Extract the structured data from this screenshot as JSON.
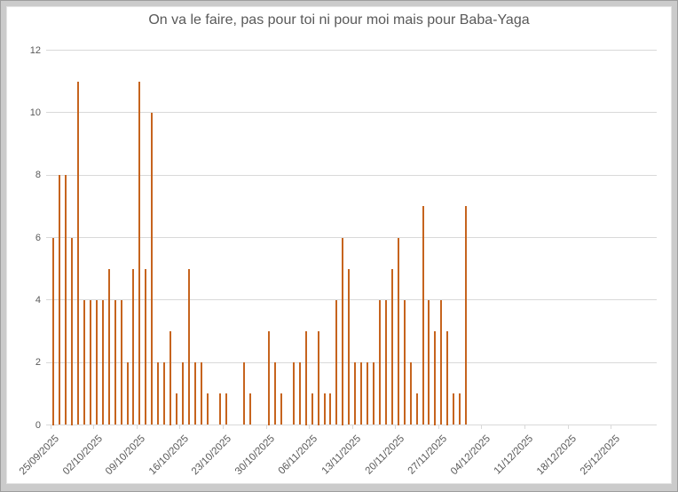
{
  "window": {
    "frame_color": "#cbcbcb",
    "frame_border_color": "#9e9e9e",
    "card_background": "#ffffff"
  },
  "chart_data": {
    "type": "bar",
    "title": "On va le faire, pas pour toi ni pour moi mais pour Baba-Yaga",
    "xlabel": "",
    "ylabel": "",
    "ylim": [
      0,
      12
    ],
    "yticks": [
      0,
      2,
      4,
      6,
      8,
      10,
      12
    ],
    "grid": true,
    "legend": "none",
    "bar_color": "#c6641e",
    "gridline_color": "#d9d9d9",
    "axis_text_color": "#595959",
    "title_color": "#595959",
    "x_tick_labels": [
      "25/09/2025",
      "02/10/2025",
      "09/10/2025",
      "16/10/2025",
      "23/10/2025",
      "30/10/2025",
      "06/11/2025",
      "13/11/2025",
      "20/11/2025",
      "27/11/2025",
      "04/12/2025",
      "11/12/2025",
      "18/12/2025",
      "25/12/2025"
    ],
    "categories": [
      "25/09/2025",
      "26/09/2025",
      "27/09/2025",
      "28/09/2025",
      "29/09/2025",
      "30/09/2025",
      "01/10/2025",
      "02/10/2025",
      "03/10/2025",
      "04/10/2025",
      "05/10/2025",
      "06/10/2025",
      "07/10/2025",
      "08/10/2025",
      "09/10/2025",
      "10/10/2025",
      "11/10/2025",
      "12/10/2025",
      "13/10/2025",
      "14/10/2025",
      "15/10/2025",
      "16/10/2025",
      "17/10/2025",
      "18/10/2025",
      "19/10/2025",
      "20/10/2025",
      "21/10/2025",
      "22/10/2025",
      "23/10/2025",
      "24/10/2025",
      "25/10/2025",
      "26/10/2025",
      "27/10/2025",
      "28/10/2025",
      "29/10/2025",
      "30/10/2025",
      "31/10/2025",
      "01/11/2025",
      "02/11/2025",
      "03/11/2025",
      "04/11/2025",
      "05/11/2025",
      "06/11/2025",
      "07/11/2025",
      "08/11/2025",
      "09/11/2025",
      "10/11/2025",
      "11/11/2025",
      "12/11/2025",
      "13/11/2025",
      "14/11/2025",
      "15/11/2025",
      "16/11/2025",
      "17/11/2025",
      "18/11/2025",
      "19/11/2025",
      "20/11/2025",
      "21/11/2025",
      "22/11/2025",
      "23/11/2025",
      "24/11/2025",
      "25/11/2025",
      "26/11/2025",
      "27/11/2025",
      "28/11/2025",
      "29/11/2025",
      "30/11/2025",
      "01/12/2025"
    ],
    "values": [
      6,
      8,
      8,
      6,
      11,
      4,
      4,
      4,
      4,
      5,
      4,
      4,
      2,
      5,
      11,
      5,
      10,
      2,
      2,
      3,
      1,
      2,
      5,
      2,
      2,
      1,
      0,
      1,
      1,
      0,
      0,
      2,
      1,
      0,
      0,
      3,
      2,
      1,
      0,
      2,
      2,
      3,
      1,
      3,
      1,
      1,
      4,
      6,
      5,
      2,
      2,
      2,
      2,
      4,
      4,
      5,
      6,
      4,
      2,
      1,
      7,
      4,
      3,
      4,
      3,
      1,
      1,
      7
    ]
  }
}
